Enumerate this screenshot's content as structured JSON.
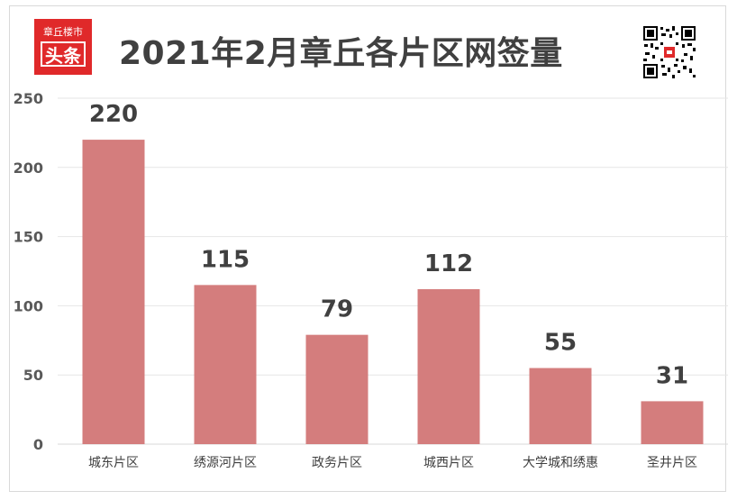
{
  "logo": {
    "top_text": "章丘楼市",
    "main_text": "头条"
  },
  "chart_data": {
    "type": "bar",
    "title": "2021年2月章丘各片区网签量",
    "categories": [
      "城东片区",
      "绣源河片区",
      "政务片区",
      "城西片区",
      "大学城和绣惠",
      "圣井片区"
    ],
    "values": [
      220,
      115,
      79,
      112,
      55,
      31
    ],
    "ylim": [
      0,
      250
    ],
    "yticks": [
      0,
      50,
      100,
      150,
      200,
      250
    ],
    "grid": true,
    "bar_color": "#d47d7d"
  }
}
